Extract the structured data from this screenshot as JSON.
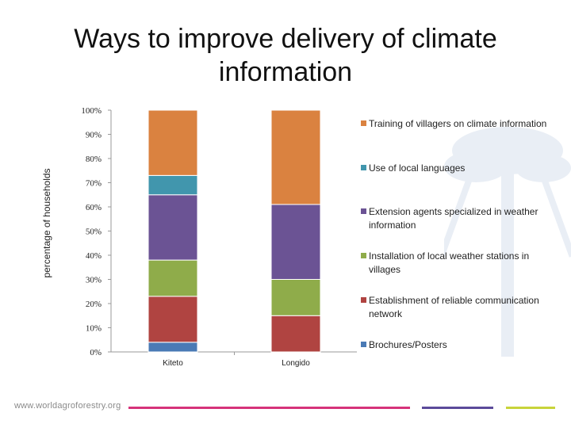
{
  "title_lines": [
    "Ways to improve delivery of  climate",
    "information"
  ],
  "footer": {
    "url": "www.worldagroforestry.org",
    "line_colors": [
      "#d6337a",
      "#5b4a9a",
      "#c8d43a"
    ]
  },
  "chart_data": {
    "type": "bar",
    "stacked": true,
    "categories": [
      "Kiteto",
      "Longido"
    ],
    "ylabel": "percentage of households",
    "ylim": [
      0,
      100
    ],
    "yticks": [
      "0%",
      "10%",
      "20%",
      "30%",
      "40%",
      "50%",
      "60%",
      "70%",
      "80%",
      "90%",
      "100%"
    ],
    "legend_position": "right",
    "grid": false,
    "series": [
      {
        "name": "Brochures/Posters",
        "color": "#4a7ab5",
        "values": [
          4,
          0
        ]
      },
      {
        "name": "Establishment of reliable communication network",
        "color": "#b04441",
        "values": [
          19,
          15
        ]
      },
      {
        "name": "Installation of local weather stations in villages",
        "color": "#8fac4a",
        "values": [
          15,
          15
        ]
      },
      {
        "name": " Extension agents specialized in weather information",
        "color": "#6b5394",
        "values": [
          27,
          31
        ]
      },
      {
        "name": "Use of local languages",
        "color": "#4196ad",
        "values": [
          8,
          0
        ]
      },
      {
        "name": "Training of villagers on climate information",
        "color": "#da8240",
        "values": [
          27,
          39
        ]
      }
    ]
  }
}
